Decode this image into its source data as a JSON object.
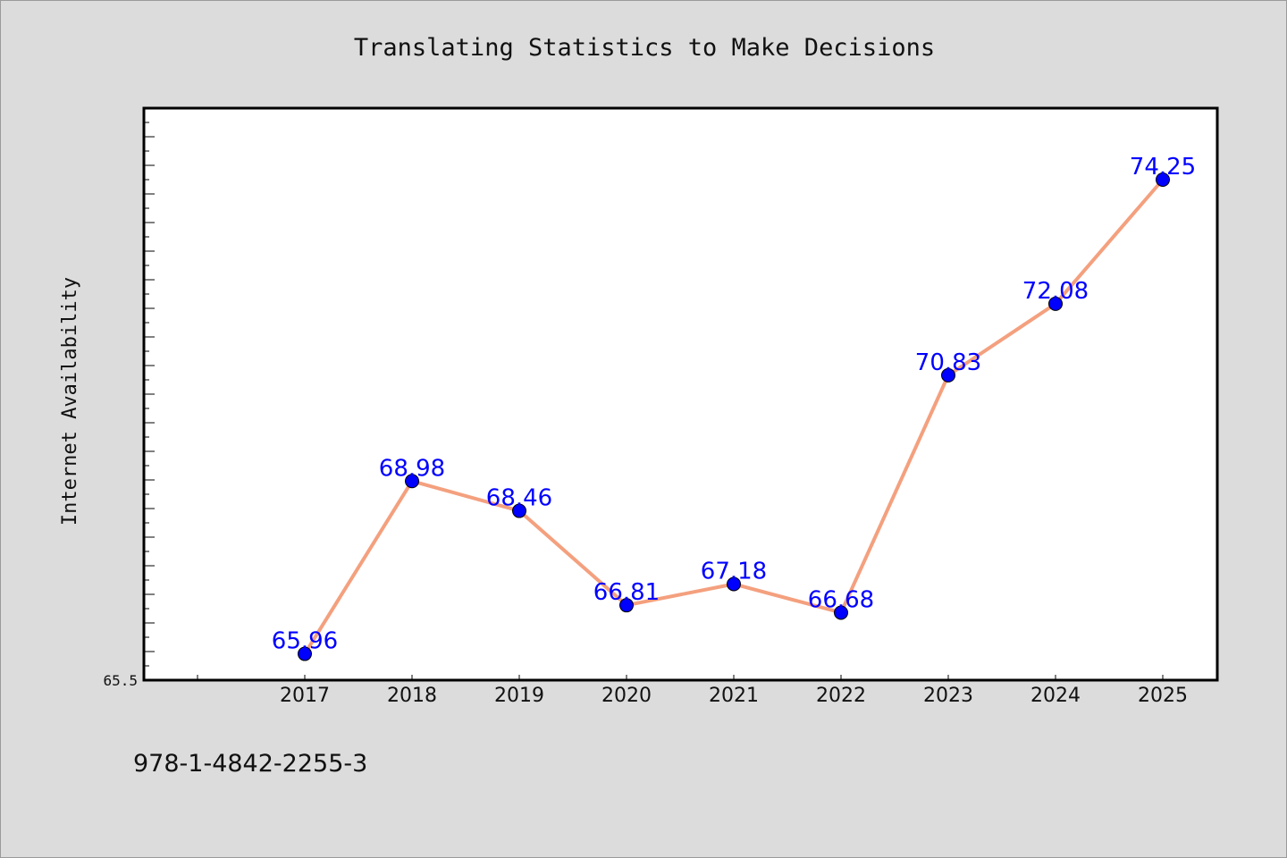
{
  "footer": {
    "isbn": "978-1-4842-2255-3"
  },
  "colors": {
    "line": "#f4a07e",
    "marker": "#0000ff",
    "label": "#0000ff",
    "background": "#dcdcdc",
    "plot_background": "#ffffff"
  },
  "chart_data": {
    "type": "line",
    "title": "Translating Statistics to Make Decisions",
    "xlabel": "",
    "ylabel": "Internet Availability",
    "categories": [
      "2017",
      "2018",
      "2019",
      "2020",
      "2021",
      "2022",
      "2023",
      "2024",
      "2025"
    ],
    "series": [
      {
        "values": [
          65.96,
          68.98,
          68.46,
          66.81,
          67.18,
          66.68,
          70.83,
          72.08,
          74.25
        ]
      }
    ],
    "value_labels": [
      "65.96",
      "68.98",
      "68.46",
      "66.81",
      "67.18",
      "66.68",
      "70.83",
      "72.08",
      "74.25"
    ],
    "ylim": [
      65.5,
      75.5
    ],
    "y_tick_labels": [
      "65.5"
    ],
    "grid": false,
    "legend": "none",
    "markers": "circle"
  }
}
